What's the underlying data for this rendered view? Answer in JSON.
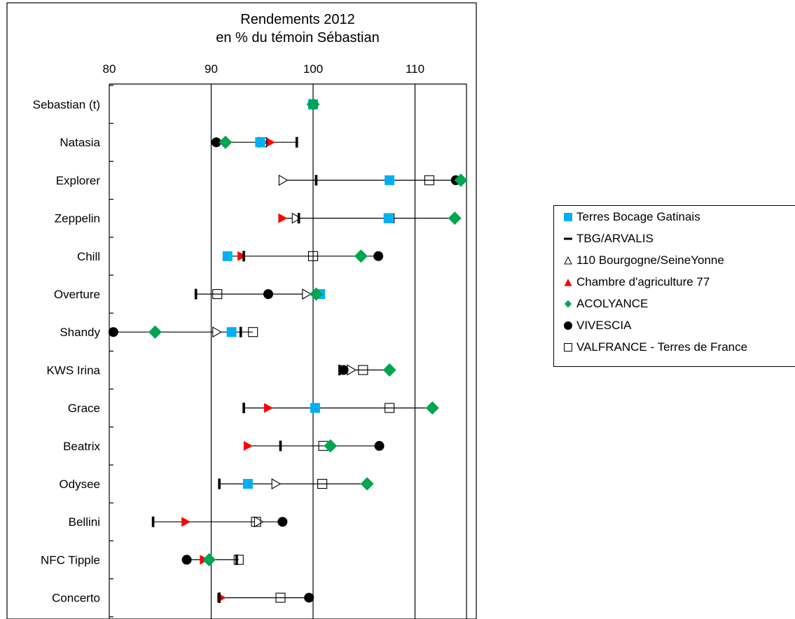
{
  "chart_data": {
    "type": "scatter",
    "title": "Rendements 2012",
    "subtitle": "en % du témoin Sébastian",
    "xlim": [
      80,
      114.5
    ],
    "xticks": [
      80,
      90,
      100,
      110
    ],
    "x_tick_labels": [
      "80",
      "90",
      "100",
      "110"
    ],
    "grid": "vertical lines at 90, 100, 110",
    "legend_placement": "right",
    "categories": [
      "Sebastian (t)",
      "Natasia",
      "Explorer",
      "Zeppelin",
      "Chill",
      "Overture",
      "Shandy",
      "KWS Irina",
      "Grace",
      "Beatrix",
      "Odysee",
      "Bellini",
      "NFC Tipple",
      "Concerto"
    ],
    "series": [
      {
        "name": "Terres Bocage Gatinais",
        "marker": "square",
        "color": "#00b0f0",
        "values": [
          100,
          94.8,
          107.5,
          107.4,
          91.6,
          100.7,
          92.0,
          null,
          100.2,
          null,
          93.6,
          null,
          null,
          null
        ]
      },
      {
        "name": "TBG/ARVALIS",
        "marker": "bar",
        "color": "#000000",
        "values": [
          100,
          98.4,
          100.3,
          98.6,
          93.2,
          88.5,
          92.9,
          102.6,
          93.2,
          96.8,
          90.8,
          84.3,
          92.5,
          90.8
        ]
      },
      {
        "name": "110 Bourgogne/SeineYonne",
        "marker": "triangle-open",
        "color": "#000000",
        "values": [
          100,
          95.0,
          97.0,
          98.3,
          null,
          99.3,
          90.5,
          103.7,
          null,
          null,
          96.3,
          94.6,
          null,
          null
        ]
      },
      {
        "name": "Chambre d'agriculture 77",
        "marker": "triangle-red",
        "color": "#ff0000",
        "values": [
          100,
          95.8,
          null,
          97.0,
          93.0,
          null,
          null,
          null,
          95.6,
          93.6,
          null,
          87.5,
          89.3,
          91.0
        ]
      },
      {
        "name": "ACOLYANCE",
        "marker": "diamond",
        "color": "#00a550",
        "values": [
          100,
          91.4,
          114.5,
          113.9,
          104.7,
          100.3,
          84.5,
          107.5,
          111.7,
          101.7,
          105.3,
          null,
          89.8,
          null
        ]
      },
      {
        "name": "VIVESCIA",
        "marker": "circle",
        "color": "#000000",
        "values": [
          100,
          90.5,
          114.0,
          null,
          106.4,
          95.6,
          80.4,
          103.0,
          null,
          106.5,
          null,
          97.0,
          87.6,
          99.6
        ]
      },
      {
        "name": "VALFRANCE - Terres de France",
        "marker": "square-open",
        "color": "#000000",
        "values": [
          100,
          95.0,
          111.4,
          107.5,
          100.0,
          90.6,
          94.1,
          104.9,
          107.5,
          101.0,
          100.9,
          94.4,
          92.7,
          96.8
        ]
      }
    ]
  }
}
